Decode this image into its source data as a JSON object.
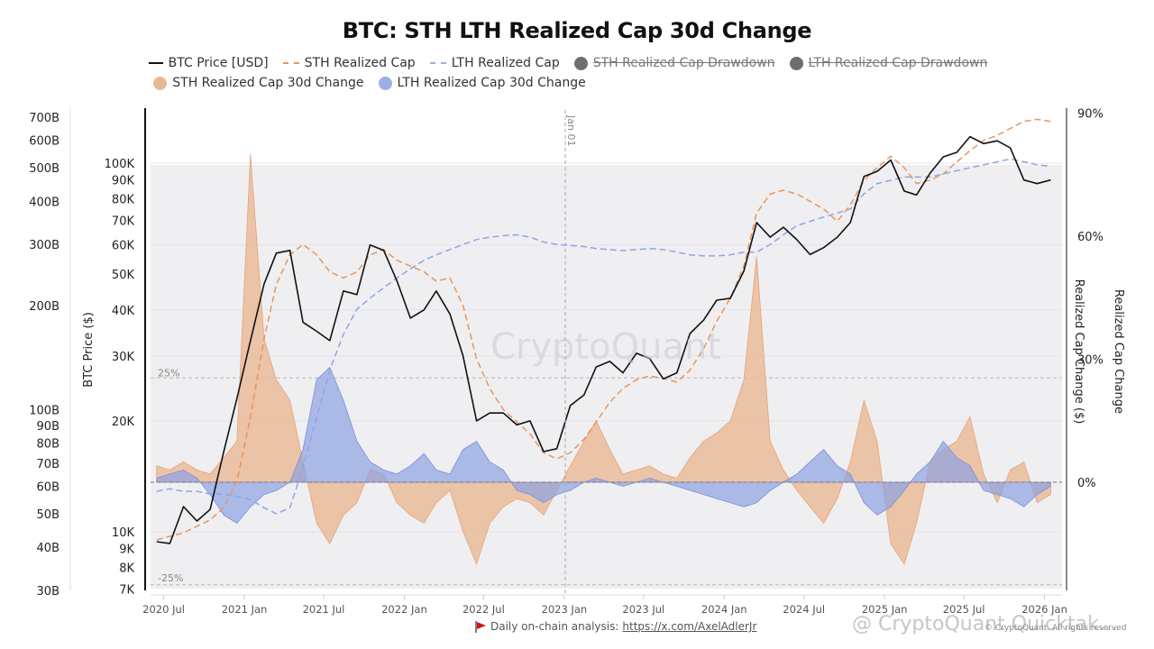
{
  "title": "BTC: STH LTH Realized Cap 30d Change",
  "legend": [
    {
      "label": "BTC Price [USD]",
      "style": "line",
      "color": "#111111",
      "enabled": true
    },
    {
      "label": "STH Realized Cap",
      "style": "dashed",
      "color": "#e89659",
      "enabled": true
    },
    {
      "label": "LTH Realized Cap",
      "style": "dashed",
      "color": "#9aaee8",
      "enabled": true
    },
    {
      "label": "STH Realized Cap Drawdown",
      "style": "dot",
      "color": "#6e6e72",
      "enabled": false
    },
    {
      "label": "LTH Realized Cap Drawdown",
      "style": "dot",
      "color": "#6e6e72",
      "enabled": false
    },
    {
      "label": "STH Realized Cap 30d Change",
      "style": "dot",
      "color": "#eab894",
      "enabled": true
    },
    {
      "label": "LTH Realized Cap 30d Change",
      "style": "dot",
      "color": "#9aaee8",
      "enabled": true
    }
  ],
  "colors": {
    "btc": "#111111",
    "sth": "#e89659",
    "lth": "#8fa4e6",
    "sth_fill": "#eab894",
    "lth_fill": "#8fa4e0",
    "overlap": "#a7a3b4",
    "plot_bg": "#efeff2"
  },
  "annotation": {
    "vline_label": "Jan 01",
    "vline_date": "2023-01-01"
  },
  "watermark": "CryptoQuant",
  "footer": {
    "flag_icon": "red-flag",
    "text": "Daily on-chain analysis: ",
    "link": "https://x.com/AxelAdlerJr",
    "watermark2": "@ CryptoQuant Quicktak...",
    "copyright": "© CryptoQuant. All rights reserved"
  },
  "chart_data": {
    "type": "line",
    "title": "BTC: STH LTH Realized Cap 30d Change",
    "x_ticks": [
      "2020 Jul",
      "2021 Jan",
      "2021 Jul",
      "2022 Jan",
      "2022 Jul",
      "2023 Jan",
      "2023 Jul",
      "2024 Jan",
      "2024 Jul",
      "2025 Jan",
      "2025 Jul",
      "2026 Jan"
    ],
    "axes": {
      "realized_cap": {
        "label": "",
        "scale": "log",
        "ticks": [
          "700B",
          "600B",
          "500B",
          "400B",
          "300B",
          "200B",
          "100B",
          "90B",
          "80B",
          "70B",
          "60B",
          "50B",
          "40B",
          "30B"
        ],
        "range": [
          30000000000.0,
          700000000000.0
        ]
      },
      "btc_price": {
        "label": "BTC Price ($)",
        "scale": "log",
        "ticks": [
          "100K",
          "90K",
          "80K",
          "70K",
          "60K",
          "50K",
          "40K",
          "30K",
          "20K",
          "10K",
          "9K",
          "8K",
          "7K"
        ],
        "range": [
          7000,
          100000
        ]
      },
      "change_inner": {
        "label": "Realized Cap Change ($)",
        "gridlines": [
          "25%",
          "-25%"
        ]
      },
      "change_right": {
        "label": "Realized Cap Change",
        "ticks": [
          "90%",
          "60%",
          "30%",
          "0%"
        ],
        "range": [
          -25,
          90
        ]
      }
    },
    "x": [
      "2020-06",
      "2020-07",
      "2020-08",
      "2020-09",
      "2020-10",
      "2020-11",
      "2020-12",
      "2021-01",
      "2021-02",
      "2021-03",
      "2021-04",
      "2021-05",
      "2021-06",
      "2021-07",
      "2021-08",
      "2021-09",
      "2021-10",
      "2021-11",
      "2021-12",
      "2022-01",
      "2022-02",
      "2022-03",
      "2022-04",
      "2022-05",
      "2022-06",
      "2022-07",
      "2022-08",
      "2022-09",
      "2022-10",
      "2022-11",
      "2022-12",
      "2023-01",
      "2023-02",
      "2023-03",
      "2023-04",
      "2023-05",
      "2023-06",
      "2023-07",
      "2023-08",
      "2023-09",
      "2023-10",
      "2023-11",
      "2023-12",
      "2024-01",
      "2024-02",
      "2024-03",
      "2024-04",
      "2024-05",
      "2024-06",
      "2024-07",
      "2024-08",
      "2024-09",
      "2024-10",
      "2024-11",
      "2024-12",
      "2025-01",
      "2025-02",
      "2025-03",
      "2025-04",
      "2025-05",
      "2025-06",
      "2025-07",
      "2025-08",
      "2025-09",
      "2025-10",
      "2025-11",
      "2025-12",
      "2026-01"
    ],
    "series": [
      {
        "name": "BTC Price [USD]",
        "axis": "btc_price",
        "values": [
          9400,
          9300,
          11700,
          10700,
          11500,
          16500,
          23000,
          33000,
          47000,
          57000,
          58000,
          37000,
          35000,
          33000,
          45000,
          44000,
          60000,
          58000,
          48000,
          38000,
          40000,
          45000,
          39000,
          30000,
          20000,
          21000,
          21000,
          19500,
          20000,
          16500,
          16800,
          22000,
          23500,
          28000,
          29000,
          27000,
          30500,
          29500,
          26000,
          27000,
          34500,
          37500,
          42500,
          43000,
          51000,
          69000,
          63000,
          67000,
          62000,
          56500,
          59000,
          63000,
          69000,
          92000,
          95000,
          102000,
          84000,
          82000,
          94000,
          104000,
          107000,
          118000,
          113000,
          115000,
          110000,
          90000,
          88000,
          90000
        ]
      },
      {
        "name": "STH Realized Cap",
        "axis": "realized_cap",
        "values": [
          42000000000.0,
          43000000000.0,
          44000000000.0,
          46000000000.0,
          48000000000.0,
          52000000000.0,
          62000000000.0,
          95000000000.0,
          160000000000.0,
          230000000000.0,
          280000000000.0,
          300000000000.0,
          280000000000.0,
          250000000000.0,
          240000000000.0,
          250000000000.0,
          280000000000.0,
          290000000000.0,
          270000000000.0,
          260000000000.0,
          250000000000.0,
          235000000000.0,
          240000000000.0,
          200000000000.0,
          140000000000.0,
          115000000000.0,
          100000000000.0,
          92000000000.0,
          85000000000.0,
          75000000000.0,
          72000000000.0,
          75000000000.0,
          82000000000.0,
          92000000000.0,
          105000000000.0,
          115000000000.0,
          122000000000.0,
          125000000000.0,
          123000000000.0,
          120000000000.0,
          130000000000.0,
          150000000000.0,
          180000000000.0,
          210000000000.0,
          260000000000.0,
          370000000000.0,
          420000000000.0,
          430000000000.0,
          420000000000.0,
          400000000000.0,
          380000000000.0,
          350000000000.0,
          390000000000.0,
          460000000000.0,
          500000000000.0,
          540000000000.0,
          500000000000.0,
          450000000000.0,
          460000000000.0,
          480000000000.0,
          520000000000.0,
          560000000000.0,
          600000000000.0,
          620000000000.0,
          650000000000.0,
          680000000000.0,
          690000000000.0,
          680000000000.0
        ]
      },
      {
        "name": "LTH Realized Cap",
        "axis": "realized_cap",
        "values": [
          58000000000.0,
          59000000000.0,
          58000000000.0,
          58000000000.0,
          57000000000.0,
          57000000000.0,
          56000000000.0,
          55000000000.0,
          52000000000.0,
          50000000000.0,
          52000000000.0,
          68000000000.0,
          95000000000.0,
          130000000000.0,
          165000000000.0,
          195000000000.0,
          210000000000.0,
          225000000000.0,
          240000000000.0,
          255000000000.0,
          270000000000.0,
          280000000000.0,
          290000000000.0,
          300000000000.0,
          310000000000.0,
          315000000000.0,
          318000000000.0,
          320000000000.0,
          315000000000.0,
          305000000000.0,
          300000000000.0,
          298000000000.0,
          296000000000.0,
          292000000000.0,
          290000000000.0,
          288000000000.0,
          290000000000.0,
          292000000000.0,
          290000000000.0,
          285000000000.0,
          280000000000.0,
          278000000000.0,
          278000000000.0,
          280000000000.0,
          285000000000.0,
          285000000000.0,
          300000000000.0,
          320000000000.0,
          340000000000.0,
          350000000000.0,
          360000000000.0,
          370000000000.0,
          380000000000.0,
          420000000000.0,
          450000000000.0,
          460000000000.0,
          470000000000.0,
          470000000000.0,
          470000000000.0,
          480000000000.0,
          490000000000.0,
          500000000000.0,
          510000000000.0,
          520000000000.0,
          530000000000.0,
          520000000000.0,
          510000000000.0,
          505000000000.0
        ]
      },
      {
        "name": "STH Realized Cap 30d Change",
        "axis": "change_right",
        "unit": "%",
        "values": [
          4,
          3,
          5,
          3,
          2,
          6,
          10,
          80,
          35,
          25,
          20,
          5,
          -10,
          -15,
          -8,
          -5,
          3,
          2,
          -5,
          -8,
          -10,
          -5,
          -2,
          -12,
          -20,
          -10,
          -6,
          -4,
          -5,
          -8,
          -2,
          4,
          10,
          15,
          8,
          2,
          3,
          4,
          2,
          1,
          6,
          10,
          12,
          15,
          25,
          55,
          10,
          3,
          -2,
          -6,
          -10,
          -4,
          5,
          20,
          10,
          -15,
          -20,
          -10,
          5,
          8,
          10,
          16,
          2,
          -5,
          3,
          5,
          -5,
          -3
        ]
      },
      {
        "name": "LTH Realized Cap 30d Change",
        "axis": "change_right",
        "unit": "%",
        "values": [
          1,
          2,
          3,
          1,
          -3,
          -8,
          -10,
          -6,
          -3,
          -2,
          0,
          8,
          25,
          28,
          20,
          10,
          5,
          3,
          2,
          4,
          7,
          3,
          2,
          8,
          10,
          5,
          3,
          -2,
          -3,
          -5,
          -3,
          -2,
          0,
          1,
          0,
          -1,
          0,
          1,
          0,
          -1,
          -2,
          -3,
          -4,
          -5,
          -6,
          -5,
          -2,
          0,
          2,
          5,
          8,
          4,
          2,
          -5,
          -8,
          -6,
          -2,
          2,
          5,
          10,
          6,
          4,
          -2,
          -3,
          -4,
          -6,
          -3,
          -1
        ]
      }
    ]
  }
}
